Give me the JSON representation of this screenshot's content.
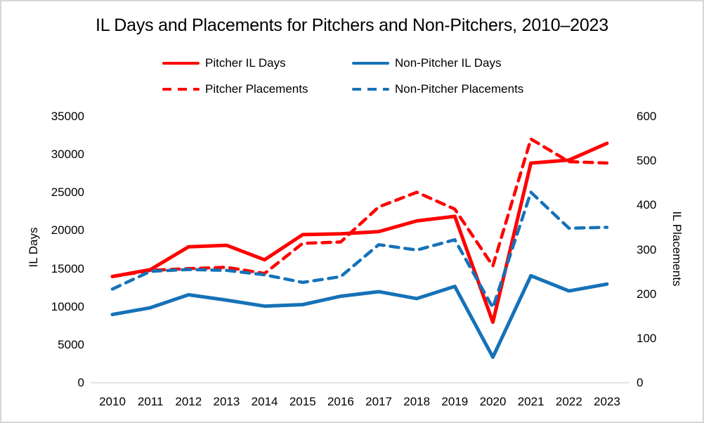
{
  "title": "IL Days and Placements for Pitchers and Non-Pitchers, 2010–2023",
  "colors": {
    "pitcher": "#FF0000",
    "non_pitcher": "#1572B8",
    "axis_line": "#D9D9D9",
    "text": "#000000"
  },
  "legend": {
    "items": [
      {
        "label": "Pitcher IL Days",
        "color": "#FF0000",
        "style": "solid"
      },
      {
        "label": "Non-Pitcher IL Days",
        "color": "#1572B8",
        "style": "solid"
      },
      {
        "label": "Pitcher Placements",
        "color": "#FF0000",
        "style": "dashed"
      },
      {
        "label": "Non-Pitcher Placements",
        "color": "#1572B8",
        "style": "dashed"
      }
    ]
  },
  "chart_data": {
    "type": "line",
    "title": "IL Days and Placements for Pitchers and Non-Pitchers, 2010–2023",
    "x": [
      2010,
      2011,
      2012,
      2013,
      2014,
      2015,
      2016,
      2017,
      2018,
      2019,
      2020,
      2021,
      2022,
      2023
    ],
    "series": [
      {
        "name": "Pitcher IL Days",
        "axis": "left",
        "style": "solid",
        "color": "#FF0000",
        "values": [
          13900,
          14800,
          17800,
          18000,
          16100,
          19400,
          19500,
          19800,
          21200,
          21800,
          7900,
          28800,
          29200,
          31400
        ]
      },
      {
        "name": "Non-Pitcher IL Days",
        "axis": "left",
        "style": "solid",
        "color": "#1572B8",
        "values": [
          8900,
          9800,
          11500,
          10800,
          10000,
          10200,
          11300,
          11900,
          11000,
          12600,
          3300,
          14000,
          12000,
          12900
        ]
      },
      {
        "name": "Pitcher Placements",
        "axis": "right",
        "style": "dashed",
        "color": "#FF0000",
        "values": [
          238,
          252,
          256,
          259,
          245,
          313,
          316,
          395,
          428,
          390,
          262,
          548,
          497,
          494
        ]
      },
      {
        "name": "Non-Pitcher Placements",
        "axis": "right",
        "style": "dashed",
        "color": "#1572B8",
        "values": [
          210,
          250,
          254,
          252,
          242,
          225,
          238,
          310,
          298,
          321,
          168,
          428,
          347,
          349
        ]
      }
    ],
    "left_axis": {
      "label": "IL Days",
      "min": 0,
      "max": 35000,
      "step": 5000,
      "ticks": [
        0,
        5000,
        10000,
        15000,
        20000,
        25000,
        30000,
        35000
      ]
    },
    "right_axis": {
      "label": "IL Placements",
      "min": 0,
      "max": 600,
      "step": 100,
      "ticks": [
        0,
        100,
        200,
        300,
        400,
        500,
        600
      ]
    },
    "grid": false,
    "legend_position": "top"
  }
}
